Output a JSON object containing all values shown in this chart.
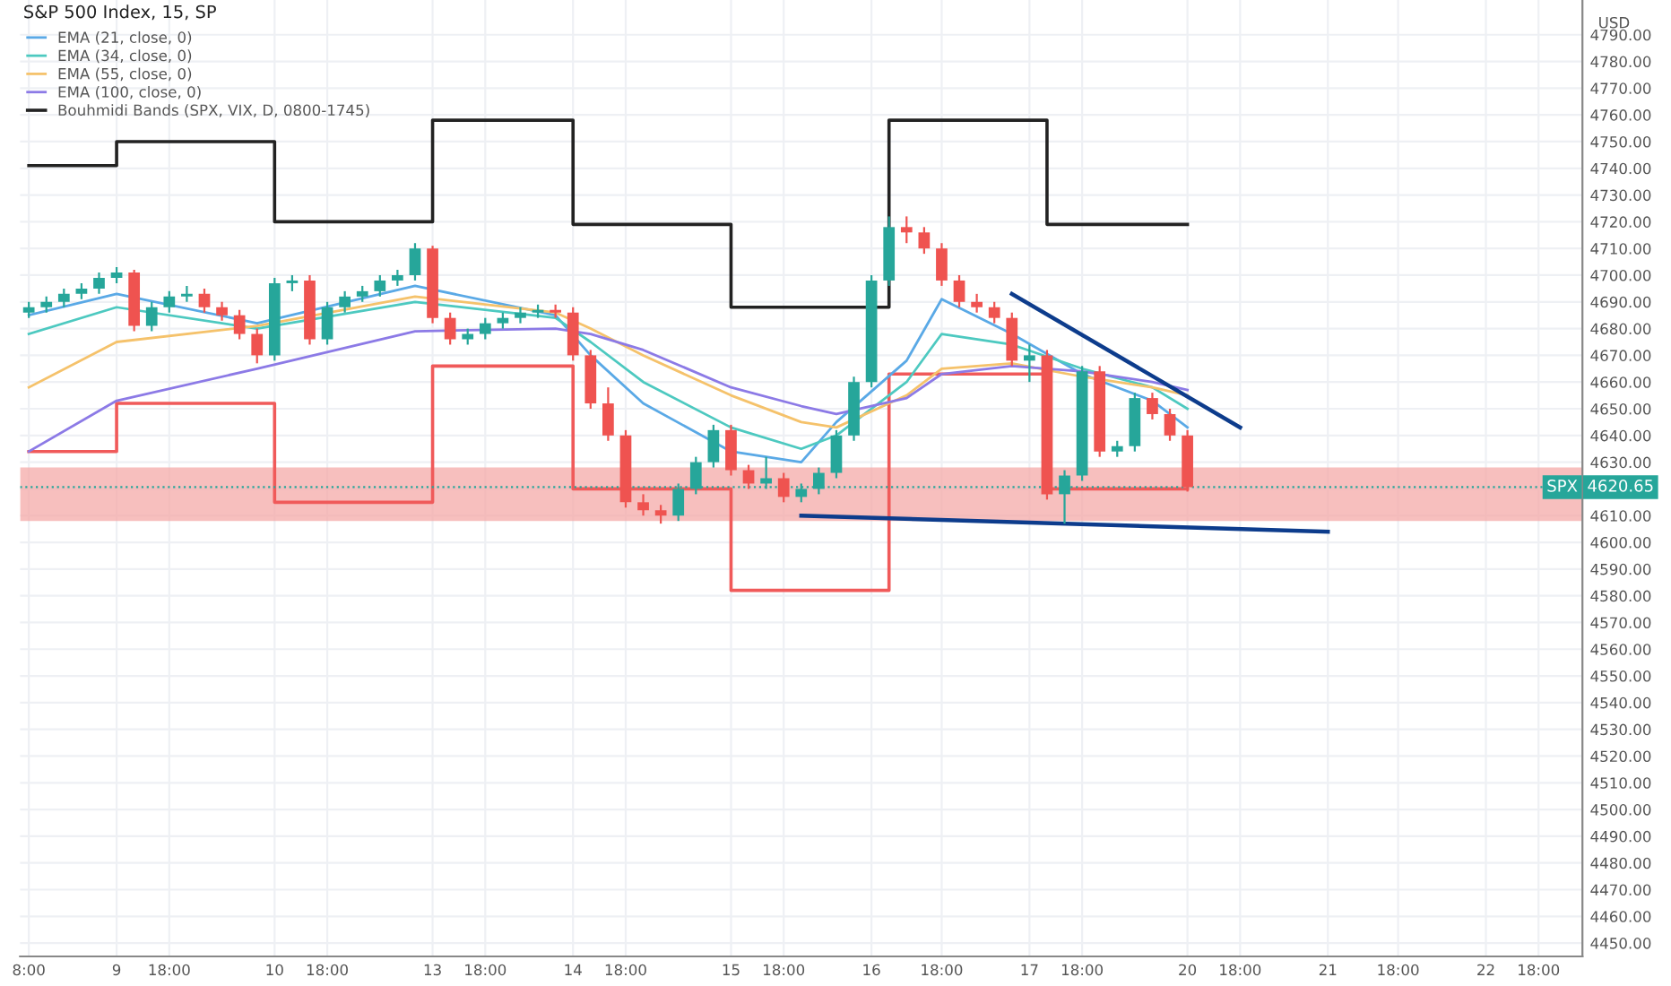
{
  "chart_data": {
    "type": "candlestick",
    "title": "S&P 500 Index, 15, SP",
    "categories": [
      "8:00",
      null,
      null,
      null,
      null,
      "9",
      null,
      null,
      "18:00",
      null,
      null,
      null,
      null,
      null,
      "10",
      null,
      null,
      "18:00",
      null,
      null,
      null,
      null,
      null,
      "13",
      null,
      null,
      "18:00",
      null,
      null,
      null,
      null,
      "14",
      null,
      null,
      "18:00",
      null,
      null,
      null,
      null,
      null,
      "15",
      null,
      null,
      "18:00",
      null,
      null,
      null,
      null,
      "16",
      null,
      null,
      null,
      "18:00",
      null,
      null,
      null,
      null,
      "17",
      null,
      null,
      "18:00",
      null,
      null,
      null,
      null,
      null,
      "20",
      null,
      null,
      "18:00",
      null,
      null,
      null,
      null,
      "21",
      null,
      null,
      null,
      "18:00",
      null,
      null,
      null,
      null,
      "22",
      null,
      null,
      "18:00",
      null,
      null
    ],
    "ohlc": [
      [
        4686,
        4690,
        4684,
        4688
      ],
      [
        4688,
        4692,
        4686,
        4690
      ],
      [
        4690,
        4695,
        4688,
        4693
      ],
      [
        4693,
        4697,
        4691,
        4695
      ],
      [
        4695,
        4701,
        4693,
        4699
      ],
      [
        4699,
        4703,
        4697,
        4701
      ],
      [
        4701,
        4702,
        4679,
        4681
      ],
      [
        4681,
        4690,
        4679,
        4688
      ],
      [
        4688,
        4694,
        4686,
        4692
      ],
      [
        4692,
        4696,
        4690,
        4693
      ],
      [
        4693,
        4695,
        4686,
        4688
      ],
      [
        4688,
        4690,
        4683,
        4685
      ],
      [
        4685,
        4687,
        4676,
        4678
      ],
      [
        4678,
        4680,
        4667,
        4670
      ],
      [
        4670,
        4699,
        4668,
        4697
      ],
      [
        4697,
        4700,
        4694,
        4698
      ],
      [
        4698,
        4700,
        4674,
        4676
      ],
      [
        4676,
        4690,
        4674,
        4688
      ],
      [
        4688,
        4694,
        4686,
        4692
      ],
      [
        4692,
        4696,
        4690,
        4694
      ],
      [
        4694,
        4700,
        4692,
        4698
      ],
      [
        4698,
        4702,
        4696,
        4700
      ],
      [
        4700,
        4712,
        4698,
        4710
      ],
      [
        4710,
        4711,
        4682,
        4684
      ],
      [
        4684,
        4686,
        4674,
        4676
      ],
      [
        4676,
        4680,
        4674,
        4678
      ],
      [
        4678,
        4684,
        4676,
        4682
      ],
      [
        4682,
        4686,
        4680,
        4684
      ],
      [
        4684,
        4688,
        4682,
        4686
      ],
      [
        4686,
        4689,
        4684,
        4687
      ],
      [
        4687,
        4689,
        4684,
        4686
      ],
      [
        4686,
        4688,
        4668,
        4670
      ],
      [
        4670,
        4672,
        4650,
        4652
      ],
      [
        4652,
        4658,
        4638,
        4640
      ],
      [
        4640,
        4642,
        4613,
        4615
      ],
      [
        4615,
        4618,
        4610,
        4612
      ],
      [
        4612,
        4614,
        4607,
        4610
      ],
      [
        4610,
        4622,
        4608,
        4620
      ],
      [
        4620,
        4632,
        4618,
        4630
      ],
      [
        4630,
        4644,
        4628,
        4642
      ],
      [
        4642,
        4644,
        4625,
        4627
      ],
      [
        4627,
        4629,
        4620,
        4622
      ],
      [
        4622,
        4632,
        4620,
        4624
      ],
      [
        4624,
        4626,
        4615,
        4617
      ],
      [
        4617,
        4622,
        4615,
        4620
      ],
      [
        4620,
        4628,
        4618,
        4626
      ],
      [
        4626,
        4642,
        4624,
        4640
      ],
      [
        4640,
        4662,
        4638,
        4660
      ],
      [
        4660,
        4700,
        4658,
        4698
      ],
      [
        4698,
        4722,
        4696,
        4718
      ],
      [
        4718,
        4722,
        4712,
        4716
      ],
      [
        4716,
        4718,
        4708,
        4710
      ],
      [
        4710,
        4712,
        4696,
        4698
      ],
      [
        4698,
        4700,
        4688,
        4690
      ],
      [
        4690,
        4693,
        4686,
        4688
      ],
      [
        4688,
        4690,
        4682,
        4684
      ],
      [
        4684,
        4686,
        4666,
        4668
      ],
      [
        4668,
        4674,
        4660,
        4670
      ],
      [
        4670,
        4672,
        4616,
        4618
      ],
      [
        4618,
        4627,
        4607,
        4625
      ],
      [
        4625,
        4666,
        4623,
        4664
      ],
      [
        4664,
        4666,
        4632,
        4634
      ],
      [
        4634,
        4638,
        4632,
        4636
      ],
      [
        4636,
        4656,
        4634,
        4654
      ],
      [
        4654,
        4656,
        4646,
        4648
      ],
      [
        4648,
        4650,
        4638,
        4640
      ],
      [
        4640,
        4642,
        4619,
        4620.65
      ],
      null,
      null,
      null,
      null,
      null,
      null,
      null,
      null,
      null,
      null,
      null,
      null,
      null,
      null,
      null,
      null,
      null,
      null,
      null,
      null,
      null,
      null
    ],
    "colors": [
      "#26a69a",
      "#26a69a",
      "#26a69a",
      "#26a69a",
      "#26a69a",
      "#26a69a",
      "#ef5350",
      "#26a69a",
      "#26a69a",
      "#26a69a",
      "#ef5350",
      "#ef5350",
      "#ef5350",
      "#ef5350",
      "#26a69a",
      "#26a69a",
      "#ef5350",
      "#26a69a",
      "#26a69a",
      "#26a69a",
      "#26a69a",
      "#26a69a",
      "#26a69a",
      "#ef5350",
      "#ef5350",
      "#26a69a",
      "#26a69a",
      "#26a69a",
      "#26a69a",
      "#26a69a",
      "#ef5350",
      "#ef5350",
      "#ef5350",
      "#ef5350",
      "#ef5350",
      "#ef5350",
      "#ef5350",
      "#26a69a",
      "#26a69a",
      "#26a69a",
      "#ef5350",
      "#ef5350",
      "#26a69a",
      "#ef5350",
      "#26a69a",
      "#26a69a",
      "#26a69a",
      "#26a69a",
      "#26a69a",
      "#26a69a",
      "#ef5350",
      "#ef5350",
      "#ef5350",
      "#ef5350",
      "#ef5350",
      "#ef5350",
      "#ef5350",
      "#26a69a",
      "#ef5350",
      "#26a69a",
      "#26a69a",
      "#ef5350",
      "#26a69a",
      "#26a69a",
      "#ef5350",
      "#ef5350",
      "#ef5350",
      null,
      null,
      null,
      null,
      null,
      null,
      null,
      null,
      null,
      null,
      null,
      null,
      null,
      null,
      null,
      null,
      null,
      null,
      null,
      null,
      null,
      null
    ],
    "series": [
      {
        "type": "line",
        "name": "EMA (21, close, 0)",
        "color": "#5aa9e6",
        "values": [
          4685,
          null,
          null,
          null,
          null,
          4693,
          null,
          null,
          null,
          null,
          null,
          null,
          null,
          4682,
          null,
          null,
          null,
          null,
          null,
          null,
          null,
          null,
          4696,
          null,
          null,
          null,
          null,
          null,
          null,
          null,
          4685,
          null,
          4670,
          null,
          null,
          4652,
          null,
          null,
          null,
          null,
          4634,
          null,
          null,
          null,
          4630,
          null,
          4645,
          null,
          null,
          null,
          4668,
          null,
          4691,
          null,
          null,
          null,
          4678,
          null,
          null,
          null,
          4663,
          null,
          null,
          null,
          4653,
          null,
          4643,
          null,
          null,
          null,
          null,
          null,
          null,
          null,
          null,
          null,
          null,
          null,
          null,
          null,
          null,
          null,
          null,
          null,
          null,
          null,
          null,
          null,
          null
        ]
      },
      {
        "type": "line",
        "name": "EMA (34, close, 0)",
        "color": "#4dc9c0",
        "values": [
          4678,
          null,
          null,
          null,
          null,
          4688,
          null,
          null,
          null,
          null,
          null,
          null,
          null,
          4680,
          null,
          null,
          null,
          null,
          null,
          null,
          null,
          null,
          4690,
          null,
          null,
          null,
          null,
          null,
          null,
          null,
          4684,
          null,
          4675,
          null,
          null,
          4660,
          null,
          null,
          null,
          null,
          4643,
          null,
          null,
          null,
          4635,
          null,
          4640,
          null,
          null,
          null,
          4660,
          null,
          4678,
          null,
          null,
          null,
          4674,
          null,
          null,
          null,
          4665,
          null,
          null,
          null,
          4658,
          null,
          4650,
          null,
          null,
          null,
          null,
          null,
          null,
          null,
          null,
          null,
          null,
          null,
          null,
          null,
          null,
          null,
          null,
          null,
          null,
          null,
          null,
          null,
          null
        ]
      },
      {
        "type": "line",
        "name": "EMA (55, close, 0)",
        "color": "#f5c26b",
        "values": [
          4658,
          null,
          null,
          null,
          null,
          4675,
          null,
          null,
          null,
          null,
          null,
          null,
          null,
          4681,
          null,
          null,
          null,
          null,
          null,
          null,
          null,
          null,
          4692,
          null,
          null,
          null,
          null,
          null,
          null,
          null,
          4686,
          null,
          4680,
          null,
          null,
          4670,
          null,
          null,
          null,
          null,
          4655,
          null,
          null,
          null,
          4645,
          null,
          4643,
          null,
          null,
          null,
          4655,
          null,
          4665,
          null,
          null,
          null,
          4667,
          null,
          null,
          null,
          4662,
          null,
          null,
          null,
          4658,
          null,
          4655,
          null,
          null,
          null,
          null,
          null,
          null,
          null,
          null,
          null,
          null,
          null,
          null,
          null,
          null,
          null,
          null,
          null,
          null,
          null,
          null,
          null,
          null
        ]
      },
      {
        "type": "line",
        "name": "EMA (100, close, 0)",
        "color": "#8c7ae6",
        "values": [
          4634,
          null,
          null,
          null,
          null,
          4653,
          null,
          null,
          null,
          null,
          null,
          null,
          null,
          4665,
          null,
          null,
          null,
          null,
          null,
          null,
          null,
          null,
          4679,
          null,
          null,
          null,
          null,
          null,
          null,
          null,
          4680,
          null,
          4678,
          null,
          null,
          4672,
          null,
          null,
          null,
          null,
          4658,
          null,
          null,
          null,
          4651,
          null,
          4648,
          null,
          null,
          null,
          4654,
          null,
          4663,
          null,
          null,
          null,
          4666,
          null,
          null,
          null,
          4664,
          null,
          null,
          null,
          4660,
          null,
          4657,
          null,
          null,
          null,
          null,
          null,
          null,
          null,
          null,
          null,
          null,
          null,
          null,
          null,
          null,
          null,
          null,
          null,
          null,
          null,
          null,
          null,
          null
        ]
      },
      {
        "type": "step",
        "name": "Bouhmidi Bands (SPX, VIX, D, 0800-1745)",
        "color": "#222222",
        "values": [
          4741,
          null,
          null,
          null,
          null,
          4750,
          null,
          null,
          null,
          null,
          null,
          null,
          null,
          null,
          4720,
          null,
          null,
          null,
          null,
          null,
          null,
          null,
          null,
          4758,
          null,
          null,
          null,
          null,
          null,
          null,
          null,
          4719,
          null,
          null,
          null,
          null,
          null,
          null,
          null,
          null,
          4688,
          null,
          null,
          null,
          null,
          null,
          null,
          null,
          null,
          4758,
          null,
          null,
          null,
          null,
          null,
          null,
          null,
          null,
          4719,
          null,
          null,
          null,
          null,
          null,
          null,
          null,
          4719,
          null,
          null,
          null,
          null,
          null,
          null,
          null,
          null,
          null,
          null,
          null,
          null,
          null,
          null,
          null,
          null,
          null,
          null,
          null,
          null,
          null,
          null
        ]
      },
      {
        "type": "step",
        "color": "#f05a5a",
        "values": [
          4634,
          null,
          null,
          null,
          null,
          4652,
          null,
          null,
          null,
          null,
          null,
          null,
          null,
          null,
          4615,
          null,
          null,
          null,
          null,
          null,
          null,
          null,
          null,
          4666,
          null,
          null,
          null,
          null,
          null,
          null,
          null,
          4620,
          null,
          null,
          null,
          null,
          null,
          null,
          null,
          null,
          4582,
          null,
          null,
          null,
          null,
          null,
          null,
          null,
          null,
          4663,
          null,
          null,
          null,
          null,
          null,
          null,
          null,
          null,
          4620,
          null,
          null,
          null,
          null,
          null,
          null,
          null,
          4620,
          null,
          null,
          null,
          null,
          null,
          null,
          null,
          null,
          null,
          null,
          null,
          null,
          null,
          null,
          null,
          null,
          null,
          null,
          null,
          null,
          null,
          null
        ]
      },
      {
        "type": "line",
        "color": "#0d3c8c",
        "values": [
          null,
          null,
          null,
          null,
          null,
          null,
          null,
          null,
          null,
          null,
          null,
          null,
          null,
          null,
          null,
          null,
          null,
          null,
          null,
          null,
          null,
          null,
          null,
          null,
          null,
          null,
          null,
          null,
          null,
          null,
          null,
          null,
          null,
          null,
          null,
          null,
          null,
          null,
          null,
          null,
          null,
          null,
          null,
          null,
          null,
          null,
          null,
          null,
          null,
          null,
          null,
          null,
          null,
          null,
          null,
          null,
          4693,
          null,
          null,
          null,
          null,
          null,
          null,
          null,
          null,
          null,
          null,
          null,
          null,
          4643,
          null,
          null,
          null,
          null,
          null,
          null,
          null,
          null,
          null,
          null,
          null,
          null,
          null,
          null,
          null,
          null,
          null,
          null,
          null
        ]
      },
      {
        "type": "line",
        "color": "#0d3c8c",
        "values": [
          null,
          null,
          null,
          null,
          null,
          null,
          null,
          null,
          null,
          null,
          null,
          null,
          null,
          null,
          null,
          null,
          null,
          null,
          null,
          null,
          null,
          null,
          null,
          null,
          null,
          null,
          null,
          null,
          null,
          null,
          null,
          null,
          null,
          null,
          null,
          null,
          null,
          null,
          null,
          null,
          null,
          null,
          null,
          null,
          4610,
          null,
          null,
          null,
          null,
          null,
          null,
          null,
          null,
          null,
          null,
          null,
          null,
          null,
          null,
          null,
          null,
          null,
          null,
          null,
          null,
          null,
          null,
          null,
          null,
          null,
          null,
          null,
          null,
          null,
          4604,
          null,
          null,
          null,
          null,
          null,
          null,
          null,
          null,
          null,
          null,
          null,
          null,
          null,
          null
        ]
      }
    ],
    "bands": [
      {
        "axis": "y",
        "from": 4608,
        "to": 4628,
        "color": "#f4a9a8"
      }
    ],
    "ref_lines": [
      {
        "axis": "y",
        "value": 4620.65,
        "label": "4620.65",
        "color": "#26a69a",
        "line_style": "dotted"
      }
    ],
    "annotations": [
      "USD",
      {
        "text": "SPX",
        "y": 4620.65
      }
    ],
    "ylim": [
      4445,
      4803
    ],
    "yticks": [
      {
        "value": 4450,
        "label": "4450.00"
      },
      {
        "value": 4460,
        "label": "4460.00"
      },
      {
        "value": 4470,
        "label": "4470.00"
      },
      {
        "value": 4480,
        "label": "4480.00"
      },
      {
        "value": 4490,
        "label": "4490.00"
      },
      {
        "value": 4500,
        "label": "4500.00"
      },
      {
        "value": 4510,
        "label": "4510.00"
      },
      {
        "value": 4520,
        "label": "4520.00"
      },
      {
        "value": 4530,
        "label": "4530.00"
      },
      {
        "value": 4540,
        "label": "4540.00"
      },
      {
        "value": 4550,
        "label": "4550.00"
      },
      {
        "value": 4560,
        "label": "4560.00"
      },
      {
        "value": 4570,
        "label": "4570.00"
      },
      {
        "value": 4580,
        "label": "4580.00"
      },
      {
        "value": 4590,
        "label": "4590.00"
      },
      {
        "value": 4600,
        "label": "4600.00"
      },
      {
        "value": 4610,
        "label": "4610.00"
      },
      {
        "value": 4620,
        "label": null
      },
      {
        "value": 4630,
        "label": "4630.00"
      },
      {
        "value": 4640,
        "label": "4640.00"
      },
      {
        "value": 4650,
        "label": "4650.00"
      },
      {
        "value": 4660,
        "label": "4660.00"
      },
      {
        "value": 4670,
        "label": "4670.00"
      },
      {
        "value": 4680,
        "label": "4680.00"
      },
      {
        "value": 4690,
        "label": "4690.00"
      },
      {
        "value": 4700,
        "label": "4700.00"
      },
      {
        "value": 4710,
        "label": "4710.00"
      },
      {
        "value": 4720,
        "label": "4720.00"
      },
      {
        "value": 4730,
        "label": "4730.00"
      },
      {
        "value": 4740,
        "label": "4740.00"
      },
      {
        "value": 4750,
        "label": "4750.00"
      },
      {
        "value": 4760,
        "label": "4760.00"
      },
      {
        "value": 4770,
        "label": "4770.00"
      },
      {
        "value": 4780,
        "label": "4780.00"
      },
      {
        "value": 4790,
        "label": "4790.00"
      }
    ],
    "grid": true,
    "legend": "top left"
  }
}
